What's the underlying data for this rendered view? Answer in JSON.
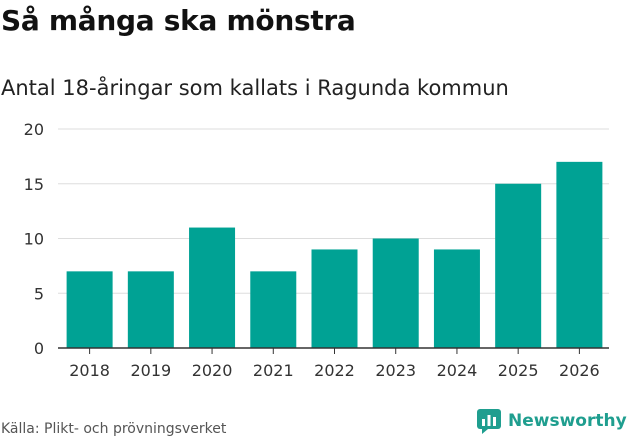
{
  "title": "Så många ska mönstra",
  "subtitle": "Antal 18-åringar som kallats i Ragunda kommun",
  "source": "Källa: Plikt- och prövningsverket",
  "brand": {
    "name": "Newsworthy",
    "icon": "newsworthy-logo-icon"
  },
  "colors": {
    "bar": "#00a294",
    "grid": "#dddddd",
    "axis": "#333333",
    "brand": "#1f9e8f"
  },
  "chart_data": {
    "type": "bar",
    "categories": [
      "2018",
      "2019",
      "2020",
      "2021",
      "2022",
      "2023",
      "2024",
      "2025",
      "2026"
    ],
    "values": [
      7,
      7,
      11,
      7,
      9,
      10,
      9,
      15,
      17
    ],
    "ylim": [
      0,
      20
    ],
    "yticks": [
      0,
      5,
      10,
      15,
      20
    ],
    "grid": true,
    "xlabel": "",
    "ylabel": ""
  }
}
